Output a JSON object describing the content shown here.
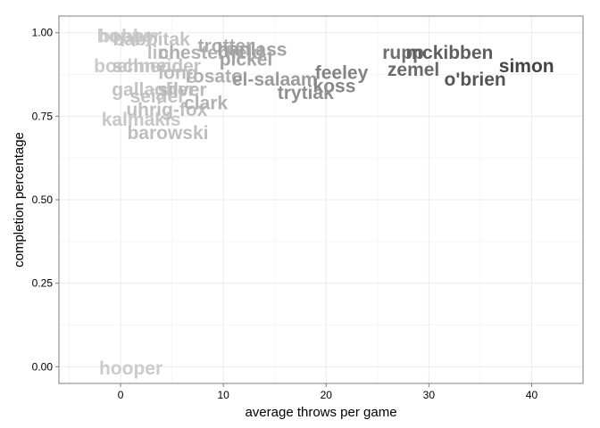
{
  "chart_data": {
    "type": "scatter",
    "title": "",
    "xlabel": "average throws per game",
    "ylabel": "completion percentage",
    "xlim": [
      -6,
      45
    ],
    "ylim": [
      -0.05,
      1.05
    ],
    "x_ticks": [
      0,
      10,
      20,
      30,
      40
    ],
    "y_ticks": [
      0.0,
      0.25,
      0.5,
      0.75,
      1.0
    ],
    "x_tick_labels": [
      "0",
      "10",
      "20",
      "30",
      "40"
    ],
    "y_tick_labels": [
      "0.00",
      "0.25",
      "0.50",
      "0.75",
      "1.00"
    ],
    "grid": true,
    "legend": "none",
    "label_color_scale": [
      "#cccccc",
      "#444444"
    ],
    "points": [
      {
        "label": "hooper",
        "x": 1.0,
        "y": -0.005
      },
      {
        "label": "barowski",
        "x": 4.6,
        "y": 0.7
      },
      {
        "label": "kalmakis",
        "x": 2.0,
        "y": 0.74
      },
      {
        "label": "uhrig-fox",
        "x": 4.5,
        "y": 0.77
      },
      {
        "label": "clark",
        "x": 8.3,
        "y": 0.79
      },
      {
        "label": "seidel",
        "x": 3.5,
        "y": 0.81
      },
      {
        "label": "gallagher",
        "x": 3.2,
        "y": 0.83
      },
      {
        "label": "silver",
        "x": 6.0,
        "y": 0.83
      },
      {
        "label": "rosato",
        "x": 9.1,
        "y": 0.87
      },
      {
        "label": "long",
        "x": 5.6,
        "y": 0.88
      },
      {
        "label": "boehner",
        "x": 1.0,
        "y": 0.9
      },
      {
        "label": "schneider",
        "x": 3.5,
        "y": 0.9
      },
      {
        "label": "linn",
        "x": 4.2,
        "y": 0.94
      },
      {
        "label": "chesterfield",
        "x": 8.8,
        "y": 0.94
      },
      {
        "label": "trotter",
        "x": 10.2,
        "y": 0.96
      },
      {
        "label": "hanlass",
        "x": 12.8,
        "y": 0.95
      },
      {
        "label": "pickel",
        "x": 12.2,
        "y": 0.92
      },
      {
        "label": "bobby",
        "x": 0.6,
        "y": 0.99
      },
      {
        "label": "hopper",
        "x": 0.8,
        "y": 0.99
      },
      {
        "label": "babbitak",
        "x": 3.0,
        "y": 0.98
      },
      {
        "label": "el-salaam",
        "x": 15.0,
        "y": 0.86
      },
      {
        "label": "feeley",
        "x": 21.5,
        "y": 0.88
      },
      {
        "label": "koss",
        "x": 20.8,
        "y": 0.84
      },
      {
        "label": "trytiak",
        "x": 18.0,
        "y": 0.82
      },
      {
        "label": "rupp",
        "x": 27.5,
        "y": 0.94
      },
      {
        "label": "mckibben",
        "x": 32.0,
        "y": 0.94
      },
      {
        "label": "zemel",
        "x": 28.5,
        "y": 0.89
      },
      {
        "label": "o'brien",
        "x": 34.5,
        "y": 0.86
      },
      {
        "label": "simon",
        "x": 39.5,
        "y": 0.9
      }
    ]
  }
}
